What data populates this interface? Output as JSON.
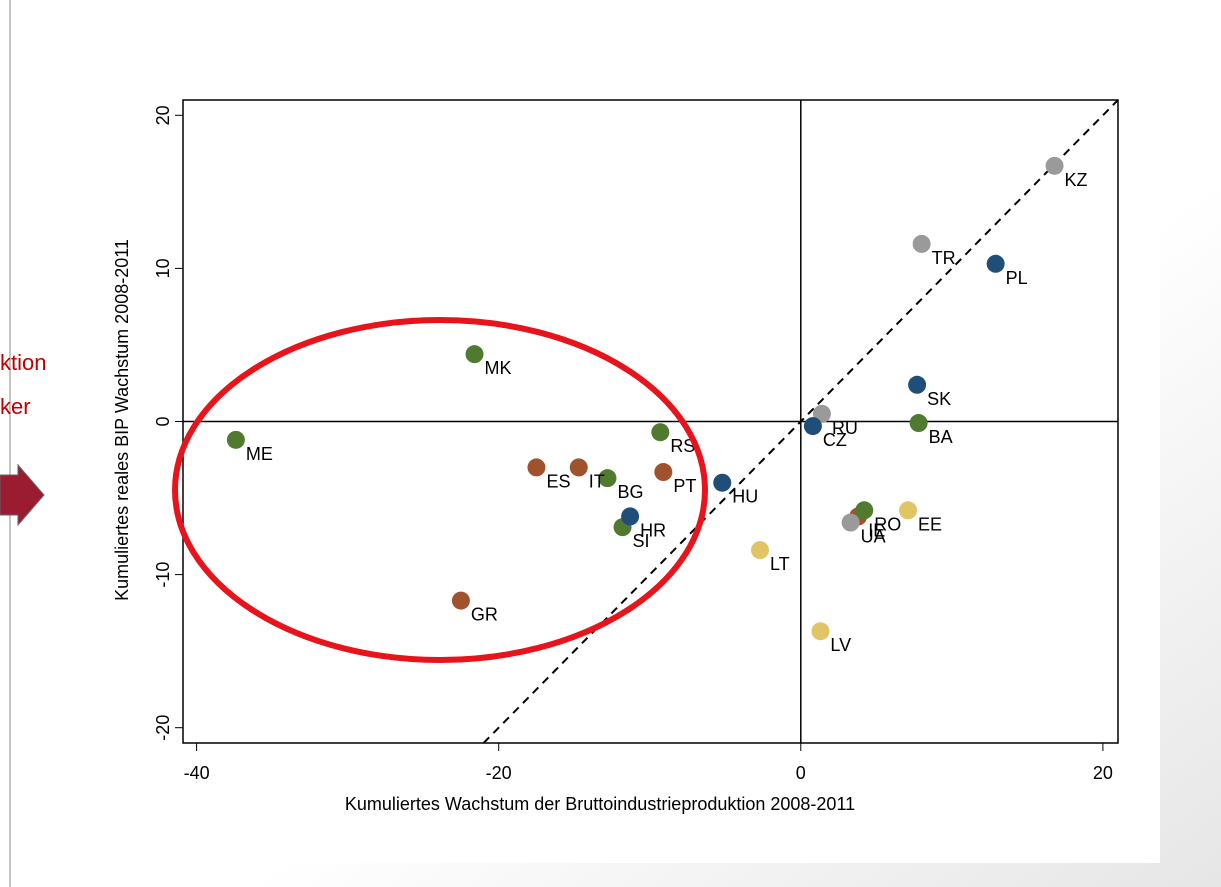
{
  "annotations": [
    "ktion",
    "ker"
  ],
  "chart_data": {
    "type": "scatter",
    "x_label": "Kumuliertes Wachstum der Bruttoindustrieproduktion 2008-2011",
    "y_label": "Kumuliertes reales BIP Wachstum 2008-2011",
    "xlim": [
      -40.9,
      21
    ],
    "ylim": [
      -21,
      21
    ],
    "xticks": [
      -40,
      -20,
      0,
      20
    ],
    "yticks": [
      -20,
      -10,
      0,
      10,
      20
    ],
    "zero_lines": true,
    "diagonal_line": true,
    "points": [
      {
        "label": "KZ",
        "x": 16.8,
        "y": 16.7,
        "color": "#9a9a9a"
      },
      {
        "label": "TR",
        "x": 8.0,
        "y": 11.6,
        "color": "#9a9a9a"
      },
      {
        "label": "PL",
        "x": 12.9,
        "y": 10.3,
        "color": "#1f4e79"
      },
      {
        "label": "SK",
        "x": 7.7,
        "y": 2.4,
        "color": "#1f4e79"
      },
      {
        "label": "BA",
        "x": 7.8,
        "y": -0.1,
        "color": "#4f7a2f"
      },
      {
        "label": "RU",
        "x": 1.4,
        "y": 0.5,
        "color": "#9a9a9a"
      },
      {
        "label": "CZ",
        "x": 0.8,
        "y": -0.3,
        "color": "#1f4e79"
      },
      {
        "label": "HU",
        "x": -5.2,
        "y": -4.0,
        "color": "#1f4e79"
      },
      {
        "label": "LT",
        "x": -2.7,
        "y": -8.4,
        "color": "#e0c465"
      },
      {
        "label": "LV",
        "x": 1.3,
        "y": -13.7,
        "color": "#e0c465"
      },
      {
        "label": "IE",
        "x": 3.8,
        "y": -6.2,
        "color": "#a0522d"
      },
      {
        "label": "RO",
        "x": 4.2,
        "y": -5.8,
        "color": "#4f7a2f"
      },
      {
        "label": "EE",
        "x": 7.1,
        "y": -5.8,
        "color": "#e0c465"
      },
      {
        "label": "UA",
        "x": 3.3,
        "y": -6.6,
        "color": "#9a9a9a"
      },
      {
        "label": "ME",
        "x": -37.4,
        "y": -1.2,
        "color": "#4f7a2f"
      },
      {
        "label": "MK",
        "x": -21.6,
        "y": 4.4,
        "color": "#4f7a2f"
      },
      {
        "label": "RS",
        "x": -9.3,
        "y": -0.7,
        "color": "#4f7a2f"
      },
      {
        "label": "BG",
        "x": -12.8,
        "y": -3.7,
        "color": "#4f7a2f"
      },
      {
        "label": "SI",
        "x": -11.8,
        "y": -6.9,
        "color": "#4f7a2f"
      },
      {
        "label": "HR",
        "x": -11.3,
        "y": -6.2,
        "color": "#1f4e79"
      },
      {
        "label": "ES",
        "x": -17.5,
        "y": -3.0,
        "color": "#a0522d"
      },
      {
        "label": "IT",
        "x": -14.7,
        "y": -3.0,
        "color": "#a0522d"
      },
      {
        "label": "PT",
        "x": -9.1,
        "y": -3.3,
        "color": "#a0522d"
      },
      {
        "label": "GR",
        "x": -22.5,
        "y": -11.7,
        "color": "#a0522d"
      }
    ]
  }
}
